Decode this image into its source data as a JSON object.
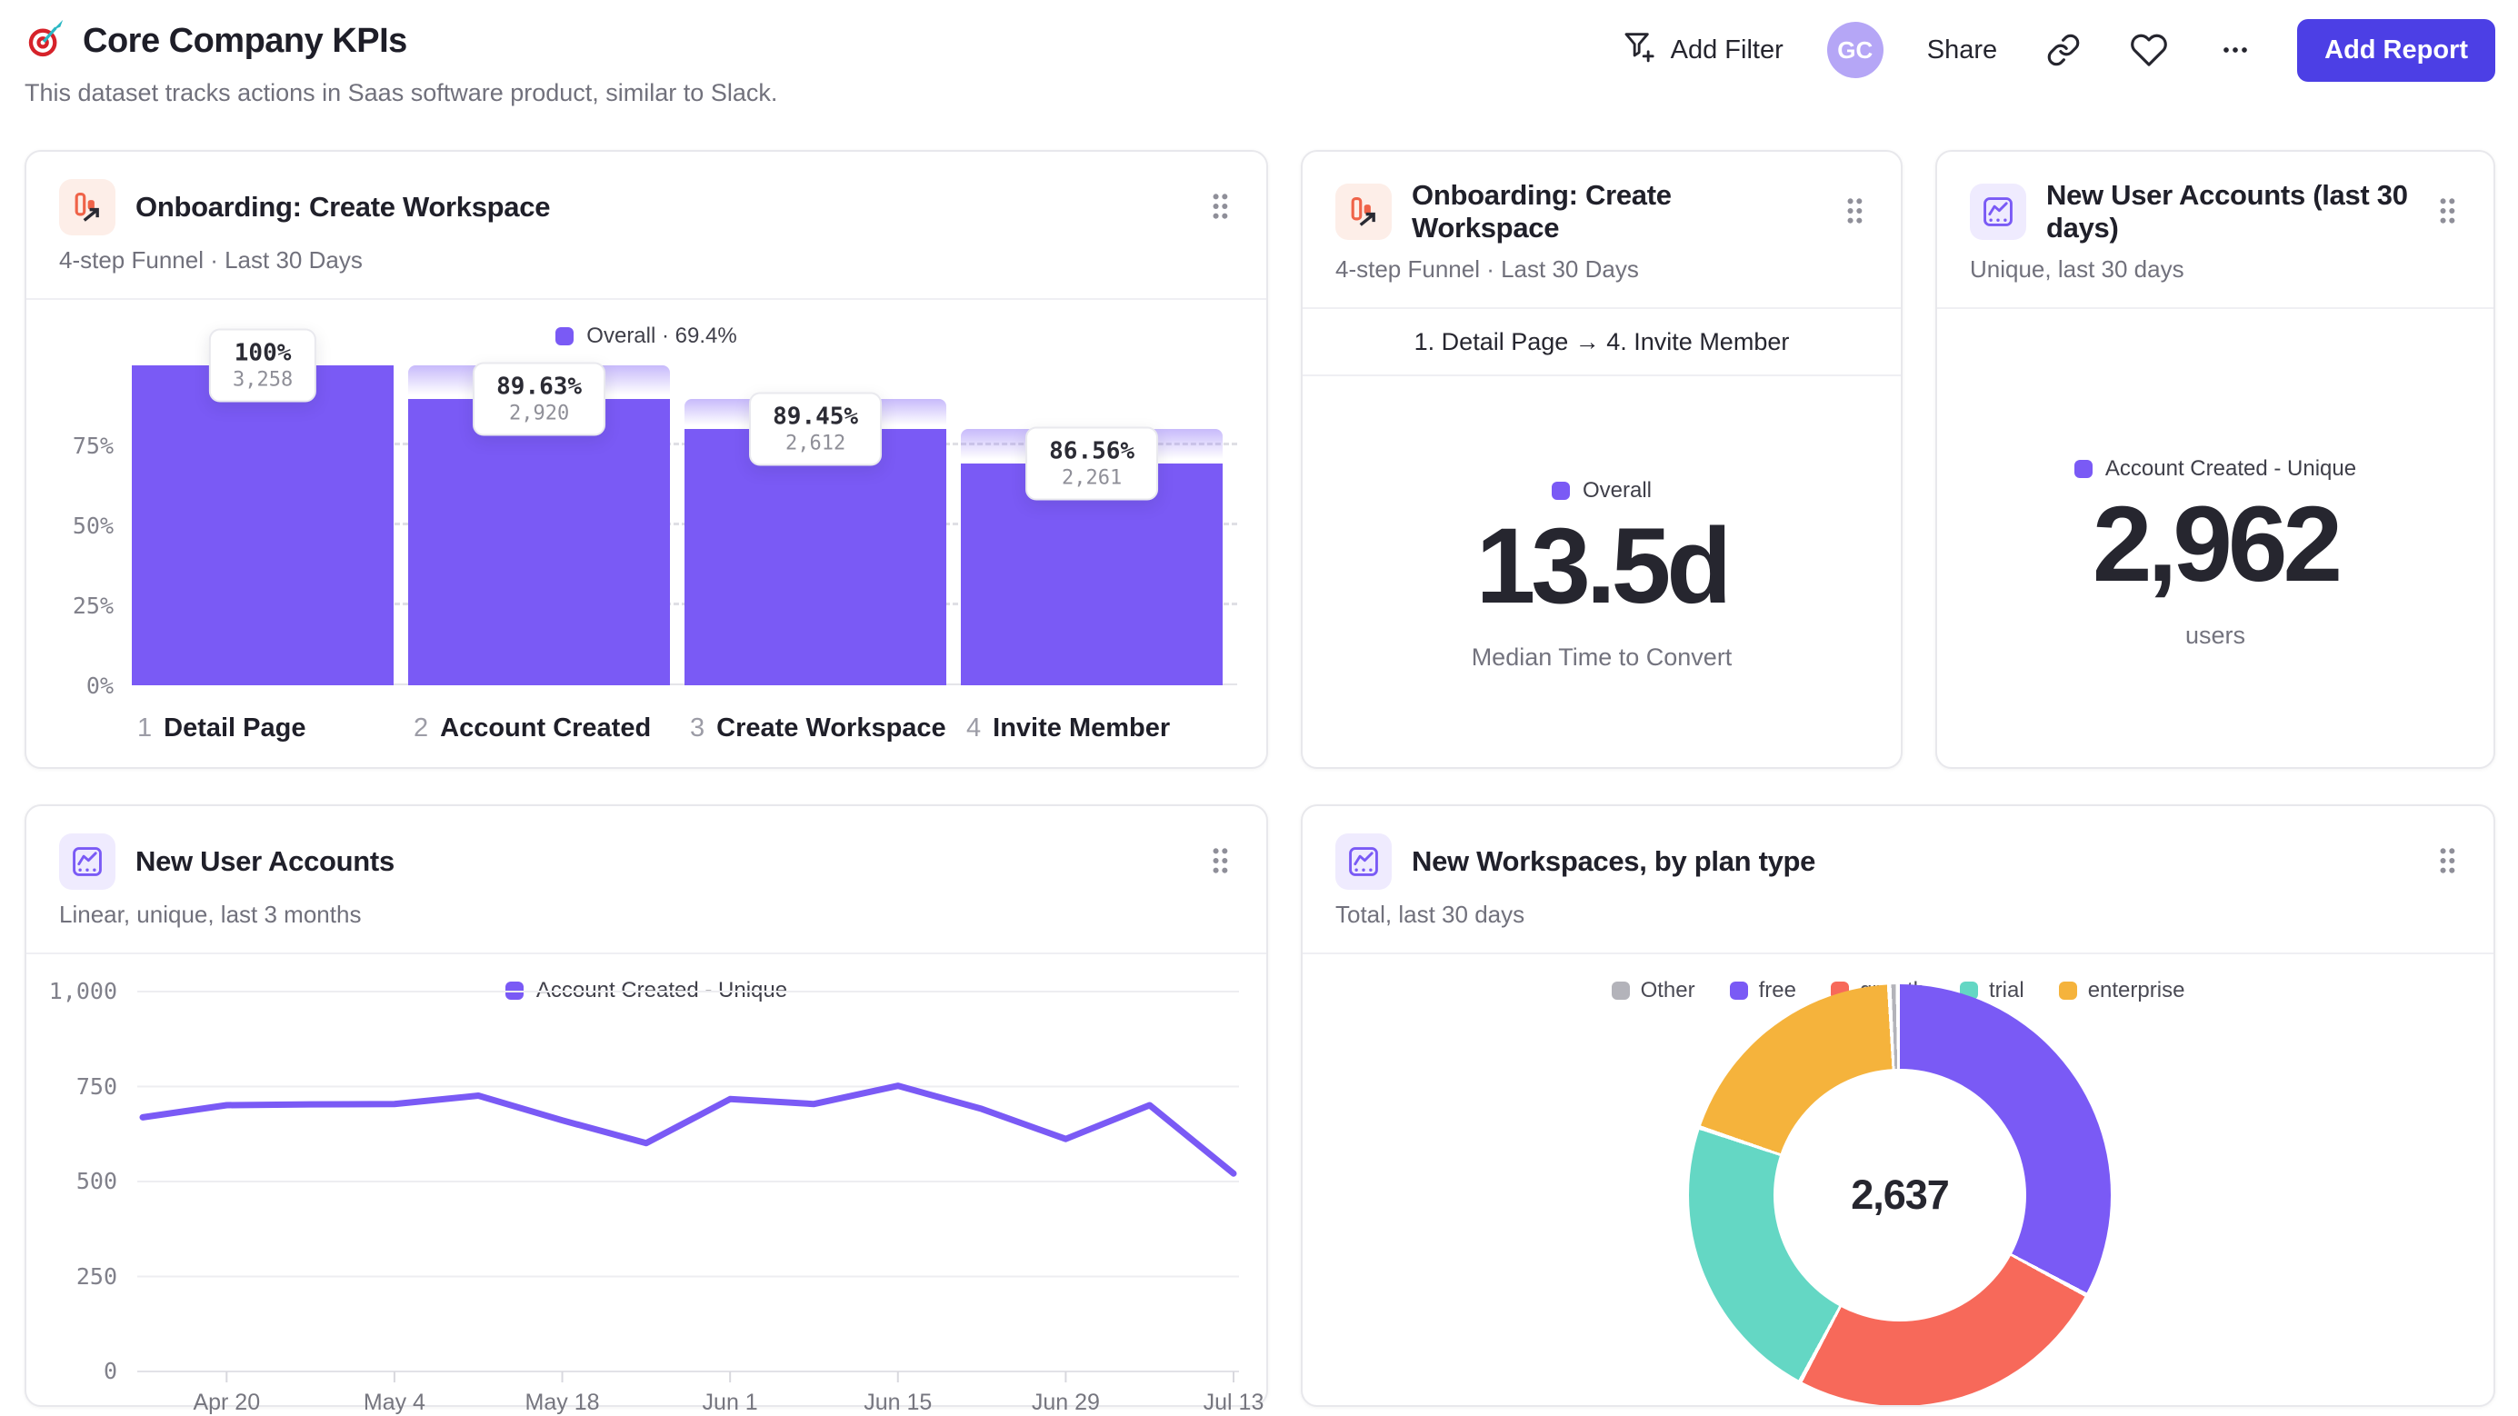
{
  "page": {
    "title": "Core Company KPIs",
    "subtitle": "This dataset tracks actions in Saas software product, similar to Slack."
  },
  "toolbar": {
    "add_filter": "Add Filter",
    "avatar": "GC",
    "share": "Share",
    "add_report": "Add Report"
  },
  "cards": {
    "funnel1": {
      "title": "Onboarding: Create Workspace",
      "subtitle": "4-step Funnel · Last 30 Days"
    },
    "funnel2": {
      "title": "Onboarding: Create Workspace",
      "subtitle": "4-step Funnel · Last 30 Days"
    },
    "accounts30": {
      "title": "New User Accounts (last 30 days)",
      "subtitle": "Unique, last 30 days"
    },
    "accounts_line": {
      "title": "New User Accounts",
      "subtitle": "Linear, unique, last 3 months"
    },
    "workspaces": {
      "title": "New Workspaces, by plan type",
      "subtitle": "Total, last 30 days"
    }
  },
  "colors": {
    "purple": "#7A5AF5",
    "indigo": "#4C3FE5",
    "avatar_bg": "#B5A6F6",
    "coral": "#F7695A",
    "teal": "#64D7C4",
    "yellow": "#F5B33C",
    "gray_slice": "#B3B3BA",
    "icon_orange": "#EF6349"
  },
  "chart_data": [
    {
      "type": "funnel",
      "legend": "Overall · 69.4%",
      "overall_conversion": "69.4%",
      "categories": [
        "Detail Page",
        "Account Created",
        "Create Workspace",
        "Invite Member"
      ],
      "steps": [
        {
          "n": "1",
          "label": "Detail Page",
          "conversion": "100%",
          "count": "3,258",
          "cumulative_pct": 100
        },
        {
          "n": "2",
          "label": "Account Created",
          "conversion": "89.63%",
          "count": "2,920",
          "cumulative_pct": 89.6
        },
        {
          "n": "3",
          "label": "Create Workspace",
          "conversion": "89.45%",
          "count": "2,612",
          "cumulative_pct": 80.2
        },
        {
          "n": "4",
          "label": "Invite Member",
          "conversion": "86.56%",
          "count": "2,261",
          "cumulative_pct": 69.4
        }
      ],
      "yticks": [
        "0%",
        "25%",
        "50%",
        "75%"
      ],
      "ylim": [
        0,
        100
      ],
      "grid": "dashed"
    },
    {
      "type": "big_number",
      "range": "1. Detail Page → 4. Invite Member",
      "legend": "Overall",
      "value": "13.5d",
      "caption": "Median Time to Convert"
    },
    {
      "type": "big_number",
      "legend": "Account Created - Unique",
      "value": "2,962",
      "caption": "users"
    },
    {
      "type": "line",
      "legend": "Account Created - Unique",
      "x": [
        "Apr 13",
        "Apr 20",
        "Apr 27",
        "May 4",
        "May 11",
        "May 18",
        "May 25",
        "Jun 1",
        "Jun 8",
        "Jun 15",
        "Jun 22",
        "Jun 29",
        "Jul 6",
        "Jul 13"
      ],
      "values": [
        669,
        701,
        703,
        704,
        726,
        661,
        601,
        717,
        704,
        752,
        691,
        612,
        701,
        521
      ],
      "xticks": [
        "Apr 20",
        "May 4",
        "May 18",
        "Jun 1",
        "Jun 15",
        "Jun 29",
        "Jul 13"
      ],
      "yticks": [
        0,
        250,
        500,
        750,
        1000
      ],
      "ytick_labels": [
        "0",
        "250",
        "500",
        "750",
        "1,000"
      ],
      "ylim": [
        0,
        1000
      ],
      "grid": "on",
      "legend_position": "top"
    },
    {
      "type": "donut",
      "total_label": "2,637",
      "total": 2637,
      "slices": [
        {
          "name": "free",
          "value": 870,
          "color": "#7A5AF5"
        },
        {
          "name": "growth",
          "value": 659,
          "color": "#F7695A"
        },
        {
          "name": "trial",
          "value": 590,
          "color": "#64D7C4"
        },
        {
          "name": "enterprise",
          "value": 501,
          "color": "#F5B33C"
        },
        {
          "name": "Other",
          "value": 17,
          "color": "#B3B3BA"
        }
      ],
      "legend": [
        {
          "name": "Other",
          "color": "#B3B3BA"
        },
        {
          "name": "free",
          "color": "#7A5AF5"
        },
        {
          "name": "growth",
          "color": "#F7695A"
        },
        {
          "name": "trial",
          "color": "#64D7C4"
        },
        {
          "name": "enterprise",
          "color": "#F5B33C"
        }
      ],
      "legend_position": "top"
    }
  ]
}
